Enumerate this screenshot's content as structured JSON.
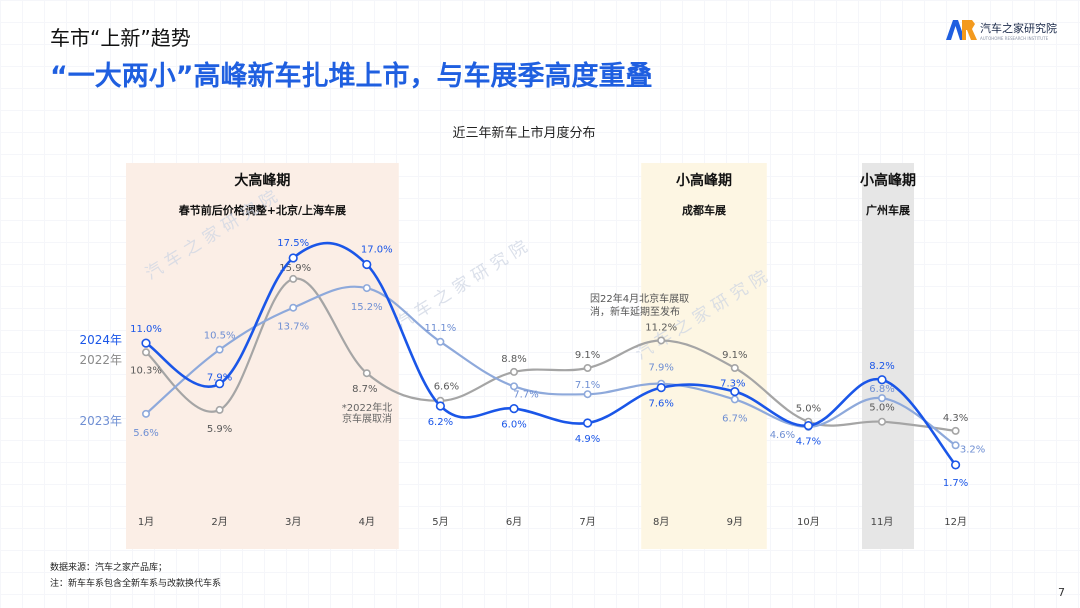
{
  "header": {
    "subtitle": "车市“上新”趋势",
    "title": "“一大两小”高峰新车扎堆上市，与车展季高度重叠"
  },
  "logo": {
    "name": "汽车之家研究院",
    "en": "AUTOHOME RESEARCH INSTITUTE"
  },
  "watermark": "汽 车 之 家 研 究 院",
  "footnotes": {
    "source": "数据来源：汽车之家产品库；",
    "note": "注：新车车系包含全新车系与改款换代车系"
  },
  "page_number": "7",
  "colors": {
    "brand_blue": "#1f5fe0",
    "series_2024": "#1a56e8",
    "series_2022": "#a5a5a5",
    "series_2023": "#8ea9db",
    "band_big": "#fbeee6",
    "band_chengdu": "#fdf6e3",
    "band_guangzhou": "#e6e6e6"
  },
  "chart_data": {
    "type": "line",
    "title": "近三年新车上市月度分布",
    "categories": [
      "1月",
      "2月",
      "3月",
      "4月",
      "5月",
      "6月",
      "7月",
      "8月",
      "9月",
      "10月",
      "11月",
      "12月"
    ],
    "series": [
      {
        "name": "2024年",
        "values": [
          11.0,
          7.9,
          17.5,
          17.0,
          6.2,
          6.0,
          4.9,
          7.6,
          7.3,
          4.7,
          8.2,
          1.7
        ]
      },
      {
        "name": "2022年",
        "values": [
          10.3,
          5.9,
          15.9,
          8.7,
          6.6,
          8.8,
          9.1,
          11.2,
          9.1,
          5.0,
          5.0,
          4.3
        ]
      },
      {
        "name": "2023年",
        "values": [
          5.6,
          10.5,
          13.7,
          15.2,
          11.1,
          7.7,
          7.1,
          7.9,
          6.7,
          4.6,
          6.8,
          3.2
        ]
      }
    ],
    "value_labels": {
      "2024年": [
        "11.0%",
        "7.9%",
        "17.5%",
        "17.0%",
        "6.2%",
        "6.0%",
        "4.9%",
        "7.6%",
        "7.3%",
        "4.7%",
        "8.2%",
        "1.7%"
      ],
      "2022年": [
        "10.3%",
        "5.9%",
        "15.9%",
        "8.7%",
        "6.6%",
        "8.8%",
        "9.1%",
        "11.2%",
        "9.1%",
        "5.0%",
        "5.0%",
        "4.3%"
      ],
      "2023年": [
        "5.6%",
        "10.5%",
        "13.7%",
        "15.2%",
        "11.1%",
        "7.7%",
        "7.1%",
        "7.9%",
        "6.7%",
        "4.6%",
        "6.8%",
        "3.2%"
      ]
    },
    "periods": [
      {
        "title": "大高峰期",
        "subtitle": "春节前后价格调整+北京/上海车展",
        "from": "1月",
        "to": "4月"
      },
      {
        "title": "小高峰期",
        "subtitle": "成都车展",
        "from": "8月",
        "to": "9月"
      },
      {
        "title": "小高峰期",
        "subtitle": "广州车展",
        "from": "11月",
        "to": "11月"
      }
    ],
    "annotations": [
      {
        "text": [
          "*2022年北",
          "京车展取消"
        ],
        "at": "4月"
      },
      {
        "text": [
          "因22年4月北京车展取",
          "消，新车延期至发布"
        ],
        "at": "8月"
      }
    ],
    "ylim": [
      0,
      20
    ],
    "grid": false
  }
}
